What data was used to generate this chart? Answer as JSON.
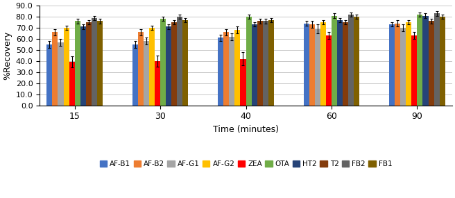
{
  "time_labels": [
    "15",
    "30",
    "40",
    "60",
    "90"
  ],
  "series_order": [
    "AF-B1",
    "AF-B2",
    "AF-G1",
    "AF-G2",
    "ZEA",
    "OTA",
    "HT2",
    "T2",
    "FB2",
    "FB1"
  ],
  "series": {
    "AF-B1": {
      "color": "#4472C4",
      "values": [
        55,
        55,
        61,
        74,
        73
      ],
      "errors": [
        3,
        3,
        3,
        2,
        2
      ]
    },
    "AF-B2": {
      "color": "#ED7D31",
      "values": [
        66,
        66,
        66,
        73,
        74
      ],
      "errors": [
        3,
        3,
        3,
        3,
        3
      ]
    },
    "AF-G1": {
      "color": "#A5A5A5",
      "values": [
        57,
        58,
        62,
        69,
        70
      ],
      "errors": [
        3,
        3,
        3,
        4,
        3
      ]
    },
    "AF-G2": {
      "color": "#FFC000",
      "values": [
        70,
        70,
        68,
        75,
        75
      ],
      "errors": [
        2,
        2,
        3,
        2,
        2
      ]
    },
    "ZEA": {
      "color": "#FF0000",
      "values": [
        39,
        40,
        42,
        63,
        63
      ],
      "errors": [
        5,
        5,
        6,
        3,
        3
      ]
    },
    "OTA": {
      "color": "#70AD47",
      "values": [
        76,
        78,
        80,
        81,
        82
      ],
      "errors": [
        2,
        2,
        2,
        2,
        2
      ]
    },
    "HT2": {
      "color": "#264478",
      "values": [
        71,
        71,
        73,
        77,
        81
      ],
      "errors": [
        2,
        2,
        2,
        2,
        2
      ]
    },
    "T2": {
      "color": "#843C0C",
      "values": [
        75,
        75,
        76,
        75,
        76
      ],
      "errors": [
        2,
        2,
        2,
        2,
        2
      ]
    },
    "FB2": {
      "color": "#636363",
      "values": [
        79,
        80,
        76,
        82,
        83
      ],
      "errors": [
        2,
        2,
        2,
        2,
        2
      ]
    },
    "FB1": {
      "color": "#7F6000",
      "values": [
        76,
        77,
        77,
        80,
        80
      ],
      "errors": [
        2,
        2,
        2,
        2,
        2
      ]
    }
  },
  "ylabel": "%Recovery",
  "xlabel": "Time (minutes)",
  "ylim": [
    0,
    90
  ],
  "yticks": [
    0,
    10,
    20,
    30,
    40,
    50,
    60,
    70,
    80,
    90
  ],
  "ytick_labels": [
    "0.0",
    "10.0",
    "20.0",
    "30.0",
    "40.0",
    "50.0",
    "60.0",
    "70.0",
    "80.0",
    "90.0"
  ],
  "bar_width": 0.072,
  "group_centers": [
    0.5,
    1.6,
    2.7,
    3.8,
    4.9
  ],
  "xlim": [
    0.05,
    5.35
  ],
  "background_color": "#FFFFFF",
  "grid_color": "#C8C8C8",
  "legend_fontsize": 7.5,
  "axis_fontsize": 9,
  "tick_fontsize": 8
}
